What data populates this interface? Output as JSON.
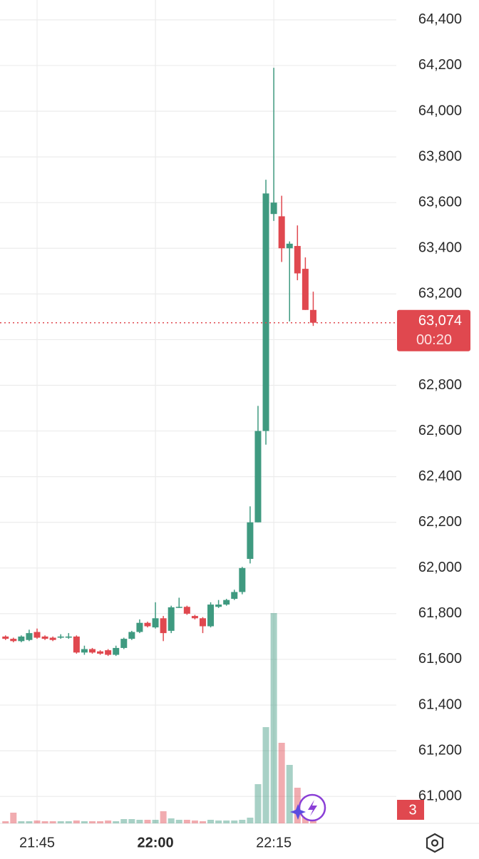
{
  "chart_data": {
    "type": "candlestick",
    "categories": [
      null,
      null,
      null,
      null,
      "21:45",
      null,
      null,
      null,
      null,
      null,
      null,
      null,
      null,
      null,
      null,
      null,
      null,
      null,
      null,
      "22:00",
      null,
      null,
      null,
      null,
      null,
      null,
      null,
      null,
      null,
      null,
      null,
      null,
      null,
      null,
      "22:15",
      null,
      null,
      null,
      null,
      null
    ],
    "open": [
      61700,
      61690,
      61680,
      61685,
      61720,
      61700,
      61695,
      61695,
      61695,
      61700,
      61630,
      61645,
      61635,
      61640,
      61620,
      61650,
      61690,
      61720,
      61760,
      61740,
      61780,
      61725,
      61828,
      61830,
      61790,
      61780,
      61745,
      61830,
      61840,
      61865,
      61895,
      62040,
      62200,
      62600,
      63550,
      63540,
      63400,
      63410,
      63310,
      63130
    ],
    "high": [
      61705,
      61695,
      61705,
      61730,
      61735,
      61705,
      61700,
      61710,
      61715,
      61705,
      61660,
      61650,
      61640,
      61645,
      61660,
      61695,
      61725,
      61775,
      61765,
      61850,
      61790,
      61835,
      61870,
      61835,
      61795,
      61785,
      61850,
      61860,
      61865,
      61905,
      62005,
      62270,
      62710,
      63700,
      64190,
      63630,
      63430,
      63500,
      63360,
      63210
    ],
    "low": [
      61685,
      61675,
      61675,
      61680,
      61690,
      61685,
      61680,
      61690,
      61690,
      61625,
      61620,
      61625,
      61620,
      61615,
      61615,
      61645,
      61685,
      61715,
      61740,
      61735,
      61680,
      61715,
      61825,
      61795,
      61775,
      61715,
      61740,
      61825,
      61835,
      61860,
      61885,
      62020,
      62200,
      62540,
      63520,
      63340,
      63080,
      63260,
      63130,
      63060
    ],
    "close": [
      61690,
      61680,
      61700,
      61715,
      61695,
      61690,
      61685,
      61700,
      61700,
      61630,
      61645,
      61630,
      61625,
      61620,
      61650,
      61690,
      61720,
      61760,
      61745,
      61780,
      61715,
      61828,
      61830,
      61800,
      61780,
      61745,
      61840,
      61840,
      61860,
      61895,
      62000,
      62200,
      62600,
      63640,
      63600,
      63400,
      63420,
      63290,
      63130,
      63074
    ],
    "volume": [
      3,
      15,
      3,
      3,
      4,
      3,
      3,
      3,
      3,
      4,
      3,
      3,
      3,
      4,
      3,
      6,
      6,
      5,
      5,
      5,
      17,
      7,
      5,
      5,
      4,
      3,
      5,
      4,
      4,
      4,
      5,
      8,
      55,
      135,
      295,
      113,
      82,
      50,
      25,
      8
    ],
    "up_color": "#3f9a80",
    "down_color": "#e0484f",
    "ylim": [
      60882,
      64487
    ],
    "yticks": [
      {
        "value": 61000,
        "label": "61,000"
      },
      {
        "value": 61200,
        "label": "61,200"
      },
      {
        "value": 61400,
        "label": "61,400"
      },
      {
        "value": 61600,
        "label": "61,600"
      },
      {
        "value": 61800,
        "label": "61,800"
      },
      {
        "value": 62000,
        "label": "62,000"
      },
      {
        "value": 62200,
        "label": "62,200"
      },
      {
        "value": 62400,
        "label": "62,400"
      },
      {
        "value": 62600,
        "label": "62,600"
      },
      {
        "value": 62800,
        "label": "62,800"
      },
      {
        "value": 63000,
        "label": "63,000"
      },
      {
        "value": 63200,
        "label": "63,200"
      },
      {
        "value": 63400,
        "label": "63,400"
      },
      {
        "value": 63600,
        "label": "63,600"
      },
      {
        "value": 63800,
        "label": "63,800"
      },
      {
        "value": 64000,
        "label": "64,000"
      },
      {
        "value": 64200,
        "label": "64,200"
      },
      {
        "value": 64400,
        "label": "64,400"
      }
    ],
    "grid": true,
    "last_price": 63074,
    "last_price_label": "63,074",
    "countdown": "00:20",
    "badge": "3"
  }
}
